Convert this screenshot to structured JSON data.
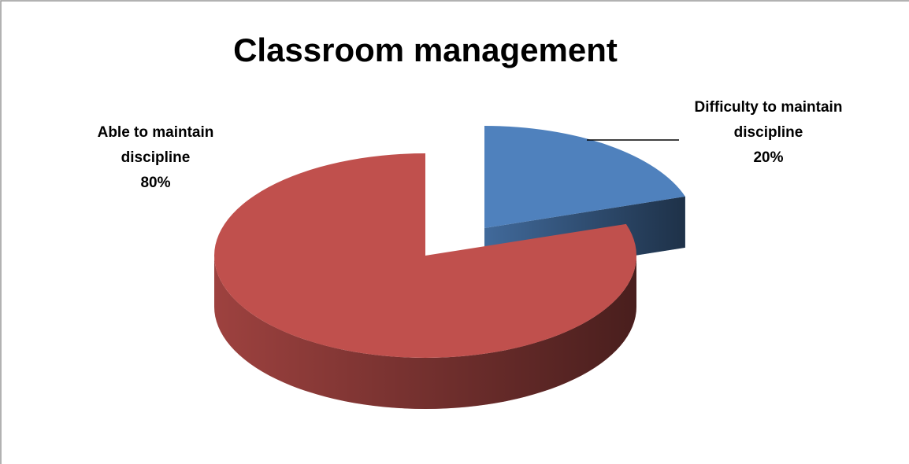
{
  "chart_data": {
    "type": "pie",
    "title": "Classroom management",
    "categories": [
      "Difficulty to maintain discipline",
      "Able to maintain discipline"
    ],
    "values": [
      20,
      80
    ],
    "value_labels": [
      "20%",
      "80%"
    ],
    "colors": [
      "#4f81bd",
      "#c0504d"
    ]
  }
}
